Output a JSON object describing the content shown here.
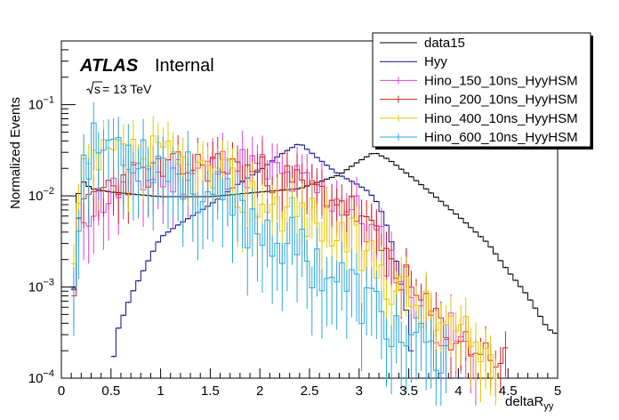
{
  "chart_data": {
    "type": "histogram",
    "title": "",
    "xlabel": "deltaR_yy",
    "ylabel": "Normalized Events",
    "xlim": [
      0,
      5
    ],
    "ylim": [
      0.0001,
      0.5
    ],
    "yscale": "log",
    "bin_width": 0.05,
    "legend_position": "top-right",
    "x_ticks": [
      "0",
      "0.5",
      "1",
      "1.5",
      "2",
      "2.5",
      "3",
      "3.5",
      "4",
      "4.5",
      "5"
    ],
    "y_ticks": [
      {
        "mantissa": "10",
        "exp": "−4",
        "value": 0.0001
      },
      {
        "mantissa": "10",
        "exp": "−3",
        "value": 0.001
      },
      {
        "mantissa": "10",
        "exp": "−2",
        "value": 0.01
      },
      {
        "mantissa": "10",
        "exp": "−1",
        "value": 0.1
      }
    ],
    "annotations": {
      "experiment": "ATLAS",
      "status": "Internal",
      "sqrt_s": "s",
      "energy": " = 13 TeV"
    },
    "series": [
      {
        "name": "data15",
        "color": "#000000",
        "anchors": [
          [
            0.1,
            0.00012
          ],
          [
            0.15,
            0.0075
          ],
          [
            0.2,
            0.015
          ],
          [
            0.3,
            0.012
          ],
          [
            0.5,
            0.011
          ],
          [
            1.0,
            0.0098
          ],
          [
            1.5,
            0.0098
          ],
          [
            2.0,
            0.011
          ],
          [
            2.4,
            0.012
          ],
          [
            2.8,
            0.017
          ],
          [
            3.0,
            0.024
          ],
          [
            3.15,
            0.03
          ],
          [
            3.3,
            0.025
          ],
          [
            3.6,
            0.014
          ],
          [
            4.0,
            0.006
          ],
          [
            4.3,
            0.003
          ],
          [
            4.5,
            0.0015
          ],
          [
            4.7,
            0.0008
          ],
          [
            4.9,
            0.00035
          ],
          [
            5.0,
            0.0003
          ]
        ]
      },
      {
        "name": "Hyy",
        "color": "#0f0f8c",
        "anchors": [
          [
            0.5,
            0.0001
          ],
          [
            0.55,
            0.0003
          ],
          [
            0.7,
            0.0008
          ],
          [
            0.9,
            0.0022
          ],
          [
            1.0,
            0.0035
          ],
          [
            1.2,
            0.005
          ],
          [
            1.5,
            0.008
          ],
          [
            1.8,
            0.014
          ],
          [
            2.0,
            0.019
          ],
          [
            2.2,
            0.028
          ],
          [
            2.4,
            0.038
          ],
          [
            2.6,
            0.025
          ],
          [
            2.8,
            0.017
          ],
          [
            3.0,
            0.013
          ],
          [
            3.1,
            0.011
          ],
          [
            3.2,
            0.008
          ],
          [
            3.3,
            0.004
          ],
          [
            3.4,
            0.0015
          ],
          [
            3.5,
            0.0004
          ],
          [
            3.55,
            0.0001
          ]
        ]
      },
      {
        "name": "Hino_150_10ns_HyyHSM",
        "color": "#e040e0",
        "anchors": [
          [
            0.1,
            0.0003
          ],
          [
            0.15,
            0.002
          ],
          [
            0.2,
            0.006
          ],
          [
            0.3,
            0.008
          ],
          [
            0.6,
            0.012
          ],
          [
            0.9,
            0.016
          ],
          [
            1.2,
            0.018
          ],
          [
            1.5,
            0.02
          ],
          [
            1.8,
            0.021
          ],
          [
            2.0,
            0.019
          ],
          [
            2.2,
            0.016
          ],
          [
            2.5,
            0.012
          ],
          [
            2.8,
            0.009
          ],
          [
            3.0,
            0.006
          ],
          [
            3.2,
            0.003
          ],
          [
            3.4,
            0.0015
          ],
          [
            3.6,
            0.0007
          ],
          [
            3.8,
            0.0004
          ],
          [
            4.2,
            0.00015
          ]
        ],
        "noise": 0.6,
        "seed": 11
      },
      {
        "name": "Hino_200_10ns_HyyHSM",
        "color": "#d42020",
        "anchors": [
          [
            0.1,
            0.0005
          ],
          [
            0.15,
            0.0025
          ],
          [
            0.2,
            0.006
          ],
          [
            0.3,
            0.01
          ],
          [
            0.6,
            0.015
          ],
          [
            0.9,
            0.018
          ],
          [
            1.2,
            0.02
          ],
          [
            1.5,
            0.022
          ],
          [
            1.8,
            0.02
          ],
          [
            2.0,
            0.018
          ],
          [
            2.2,
            0.016
          ],
          [
            2.5,
            0.012
          ],
          [
            2.8,
            0.009
          ],
          [
            3.0,
            0.006
          ],
          [
            3.2,
            0.003
          ],
          [
            3.4,
            0.0015
          ],
          [
            3.6,
            0.0007
          ],
          [
            3.9,
            0.0003
          ],
          [
            4.5,
            0.00015
          ]
        ],
        "noise": 0.45,
        "seed": 23
      },
      {
        "name": "Hino_400_10ns_HyyHSM",
        "color": "#e8c800",
        "anchors": [
          [
            0.1,
            0.0005
          ],
          [
            0.15,
            0.004
          ],
          [
            0.2,
            0.012
          ],
          [
            0.3,
            0.02
          ],
          [
            0.5,
            0.025
          ],
          [
            0.8,
            0.026
          ],
          [
            1.0,
            0.024
          ],
          [
            1.3,
            0.02
          ],
          [
            1.6,
            0.015
          ],
          [
            1.9,
            0.01
          ],
          [
            2.2,
            0.008
          ],
          [
            2.5,
            0.006
          ],
          [
            2.8,
            0.004
          ],
          [
            3.1,
            0.002
          ],
          [
            3.4,
            0.001
          ],
          [
            3.7,
            0.0005
          ],
          [
            4.0,
            0.0003
          ],
          [
            4.4,
            0.00015
          ]
        ],
        "noise": 0.65,
        "seed": 37
      },
      {
        "name": "Hino_600_10ns_HyyHSM",
        "color": "#2aa8e0",
        "anchors": [
          [
            0.1,
            0.0004
          ],
          [
            0.15,
            0.004
          ],
          [
            0.2,
            0.018
          ],
          [
            0.3,
            0.03
          ],
          [
            0.5,
            0.04
          ],
          [
            0.7,
            0.036
          ],
          [
            0.9,
            0.028
          ],
          [
            1.2,
            0.018
          ],
          [
            1.5,
            0.01
          ],
          [
            1.8,
            0.006
          ],
          [
            2.1,
            0.004
          ],
          [
            2.4,
            0.0025
          ],
          [
            2.7,
            0.0015
          ],
          [
            3.0,
            0.0008
          ],
          [
            3.3,
            0.0004
          ],
          [
            3.6,
            0.0002
          ],
          [
            3.9,
            0.00012
          ]
        ],
        "noise": 0.75,
        "seed": 53
      }
    ]
  }
}
